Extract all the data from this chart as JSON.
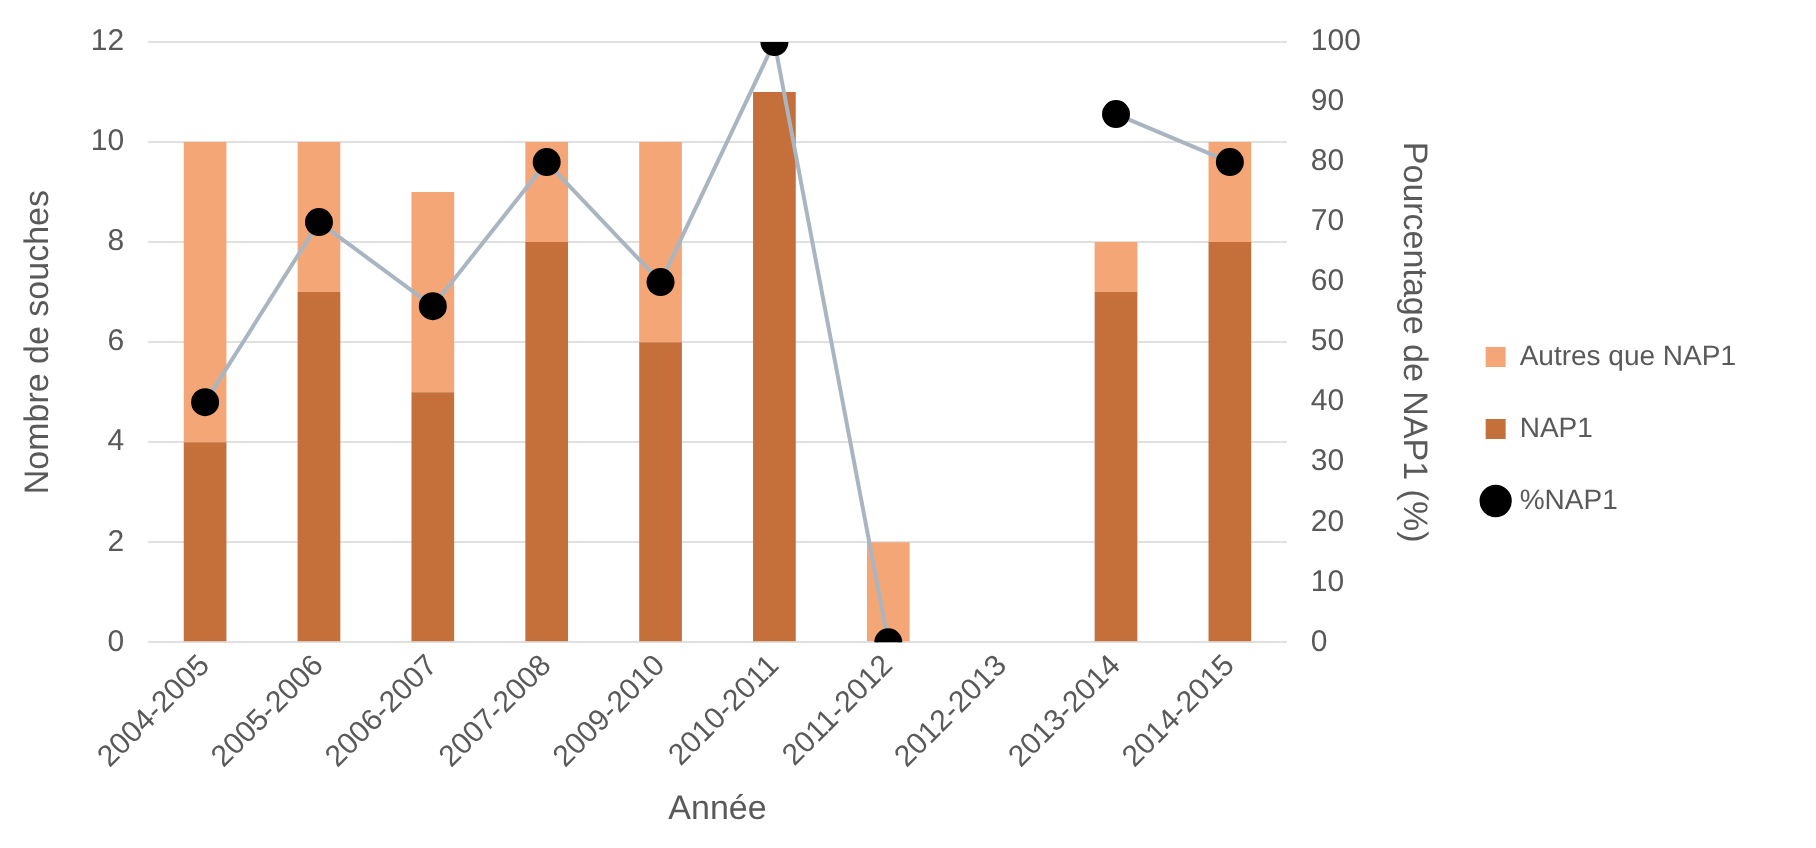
{
  "chart_data": {
    "type": "bar",
    "stacked": true,
    "xlabel": "Année",
    "ylabel": "Nombre de souches",
    "y2label": "Pourcentage de NAP1 (%)",
    "categories": [
      "2004-2005",
      "2005-2006",
      "2006-2007",
      "2007-2008",
      "2009-2010",
      "2010-2011",
      "2011-2012",
      "2012-2013",
      "2013-2014",
      "2014-2015"
    ],
    "series": [
      {
        "name": "NAP1",
        "color": "#c5703a",
        "values": [
          4,
          7,
          5,
          8,
          6,
          11,
          0,
          null,
          7,
          8
        ]
      },
      {
        "name": "Autres que NAP1",
        "color": "#f4a677",
        "values": [
          6,
          3,
          4,
          2,
          4,
          0,
          2,
          null,
          1,
          2
        ]
      },
      {
        "name": "%NAP1",
        "type": "line",
        "axis": "y2",
        "color": "#a9b6c2",
        "values": [
          40,
          70,
          56,
          80,
          60,
          100,
          0,
          null,
          88,
          80
        ]
      }
    ],
    "ylim": [
      0,
      12
    ],
    "yticks": [
      0,
      2,
      4,
      6,
      8,
      10,
      12
    ],
    "y2lim": [
      0,
      100
    ],
    "y2ticks": [
      0,
      10,
      20,
      30,
      40,
      50,
      60,
      70,
      80,
      90,
      100
    ],
    "grid": "y",
    "legend": "right",
    "marker": "circle"
  }
}
